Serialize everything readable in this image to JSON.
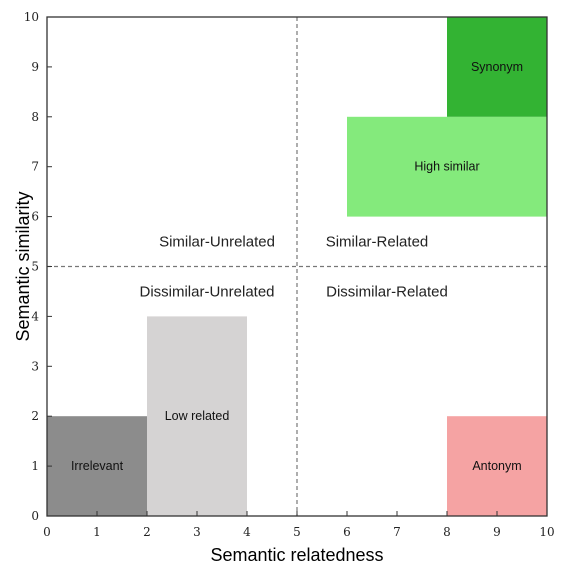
{
  "chart_data": {
    "type": "area",
    "xlabel": "Semantic relatedness",
    "ylabel": "Semantic similarity",
    "xlim": [
      0,
      10
    ],
    "ylim": [
      0,
      10
    ],
    "xticks": [
      0,
      1,
      2,
      3,
      4,
      5,
      6,
      7,
      8,
      9,
      10
    ],
    "yticks": [
      0,
      1,
      2,
      3,
      4,
      5,
      6,
      7,
      8,
      9,
      10
    ],
    "grid": false,
    "reference_lines": [
      {
        "axis": "x",
        "value": 5,
        "style": "dashed"
      },
      {
        "axis": "y",
        "value": 5,
        "style": "dashed"
      }
    ],
    "regions": [
      {
        "label": "Irrelevant",
        "x": [
          0,
          2
        ],
        "y": [
          0,
          2
        ],
        "color": "#8c8c8c"
      },
      {
        "label": "Low related",
        "x": [
          2,
          4
        ],
        "y": [
          0,
          4
        ],
        "color": "#d5d3d3"
      },
      {
        "label": "Antonym",
        "x": [
          8,
          10
        ],
        "y": [
          0,
          2
        ],
        "color": "#f5a3a3"
      },
      {
        "label": "High similar",
        "x": [
          6,
          10
        ],
        "y": [
          6,
          8
        ],
        "color": "#84ea7c"
      },
      {
        "label": "Synonym",
        "x": [
          8,
          10
        ],
        "y": [
          8,
          10
        ],
        "color": "#33b333"
      }
    ],
    "quadrant_labels": [
      {
        "text": "Similar-Unrelated",
        "x": 3.4,
        "y": 5.5
      },
      {
        "text": "Similar-Related",
        "x": 6.6,
        "y": 5.5
      },
      {
        "text": "Dissimilar-Unrelated",
        "x": 3.2,
        "y": 4.5
      },
      {
        "text": "Dissimilar-Related",
        "x": 6.8,
        "y": 4.5
      }
    ]
  }
}
